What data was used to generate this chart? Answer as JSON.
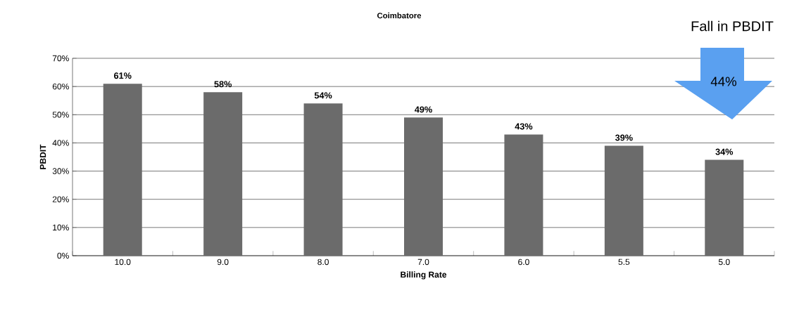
{
  "chart_data": {
    "type": "bar",
    "title": "Coimbatore",
    "xlabel": "Billing Rate",
    "ylabel": "PBDIT",
    "categories": [
      "10.0",
      "9.0",
      "8.0",
      "7.0",
      "6.0",
      "5.5",
      "5.0"
    ],
    "values": [
      61,
      58,
      54,
      49,
      43,
      39,
      34
    ],
    "value_labels": [
      "61%",
      "58%",
      "54%",
      "49%",
      "43%",
      "39%",
      "34%"
    ],
    "color": "#6b6b6b",
    "ylim": [
      0,
      70
    ],
    "yticks": [
      {
        "value": 0,
        "label": "0%"
      },
      {
        "value": 10,
        "label": "10%"
      },
      {
        "value": 20,
        "label": "20%"
      },
      {
        "value": 30,
        "label": "30%"
      },
      {
        "value": 40,
        "label": "40%"
      },
      {
        "value": 50,
        "label": "50%"
      },
      {
        "value": 60,
        "label": "60%"
      },
      {
        "value": 70,
        "label": "70%"
      }
    ],
    "grid": "y",
    "annotations": [
      "Fall in PBDIT",
      "44%"
    ]
  }
}
